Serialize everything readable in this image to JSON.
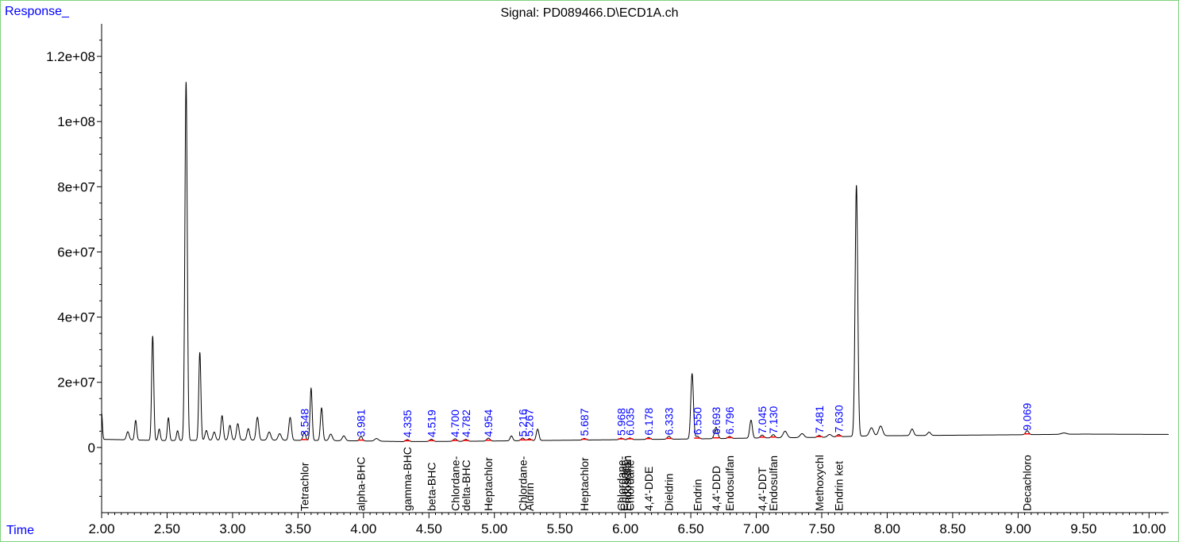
{
  "chart_data": {
    "type": "line",
    "title": "Signal: PD089466.D\\ECD1A.ch",
    "ylabel": "Response_",
    "xlabel": "Time",
    "xlim": [
      2.0,
      10.15
    ],
    "ylim": [
      -20000000,
      130000000
    ],
    "x_ticks": [
      "2.00",
      "2.50",
      "3.00",
      "3.50",
      "4.00",
      "4.50",
      "5.00",
      "5.50",
      "6.00",
      "6.50",
      "7.00",
      "7.50",
      "8.00",
      "8.50",
      "9.00",
      "9.50",
      "10.00"
    ],
    "x_tick_values": [
      2.0,
      2.5,
      3.0,
      3.5,
      4.0,
      4.5,
      5.0,
      5.5,
      6.0,
      6.5,
      7.0,
      7.5,
      8.0,
      8.5,
      9.0,
      9.5,
      10.0
    ],
    "y_ticks": [
      "0",
      "2e+07",
      "4e+07",
      "6e+07",
      "8e+07",
      "1e+08",
      "1.2e+08"
    ],
    "y_tick_values": [
      0,
      20000000,
      40000000,
      60000000,
      80000000,
      100000000,
      120000000
    ],
    "baseline": [
      [
        2.0,
        2500000
      ],
      [
        2.5,
        2100000
      ],
      [
        3.0,
        2300000
      ],
      [
        3.5,
        2200000
      ],
      [
        4.0,
        2000000
      ],
      [
        4.3,
        1800000
      ],
      [
        4.8,
        1900000
      ],
      [
        5.5,
        2200000
      ],
      [
        6.0,
        2400000
      ],
      [
        6.5,
        2600000
      ],
      [
        7.0,
        2900000
      ],
      [
        7.5,
        3100000
      ],
      [
        7.8,
        3500000
      ],
      [
        8.0,
        3600000
      ],
      [
        9.0,
        3900000
      ],
      [
        9.5,
        4100000
      ],
      [
        10.15,
        4000000
      ]
    ],
    "peaks": [
      [
        2.0,
        8000000,
        0.006
      ],
      [
        2.2,
        2500000,
        0.01
      ],
      [
        2.26,
        6000000,
        0.008
      ],
      [
        2.39,
        32000000,
        0.008
      ],
      [
        2.44,
        3500000,
        0.008
      ],
      [
        2.51,
        7000000,
        0.008
      ],
      [
        2.58,
        3000000,
        0.008
      ],
      [
        2.645,
        110000000,
        0.009
      ],
      [
        2.75,
        27000000,
        0.008
      ],
      [
        2.8,
        3000000,
        0.01
      ],
      [
        2.86,
        2500000,
        0.01
      ],
      [
        2.92,
        7500000,
        0.009
      ],
      [
        2.98,
        4500000,
        0.01
      ],
      [
        3.04,
        5000000,
        0.01
      ],
      [
        3.12,
        3500000,
        0.01
      ],
      [
        3.19,
        7000000,
        0.01
      ],
      [
        3.28,
        2500000,
        0.012
      ],
      [
        3.36,
        2000000,
        0.012
      ],
      [
        3.44,
        7000000,
        0.01
      ],
      [
        3.548,
        2500000,
        0.01
      ],
      [
        3.6,
        16000000,
        0.008
      ],
      [
        3.68,
        10000000,
        0.009
      ],
      [
        3.75,
        2000000,
        0.012
      ],
      [
        3.85,
        1500000,
        0.012
      ],
      [
        3.981,
        1500000,
        0.01
      ],
      [
        4.1,
        800000,
        0.015
      ],
      [
        4.335,
        600000,
        0.012
      ],
      [
        4.519,
        700000,
        0.012
      ],
      [
        4.7,
        800000,
        0.012
      ],
      [
        4.782,
        600000,
        0.012
      ],
      [
        4.954,
        900000,
        0.012
      ],
      [
        5.13,
        1500000,
        0.01
      ],
      [
        5.216,
        800000,
        0.012
      ],
      [
        5.267,
        600000,
        0.012
      ],
      [
        5.33,
        3500000,
        0.01
      ],
      [
        5.687,
        500000,
        0.012
      ],
      [
        5.968,
        500000,
        0.012
      ],
      [
        6.035,
        500000,
        0.012
      ],
      [
        6.178,
        600000,
        0.012
      ],
      [
        6.333,
        900000,
        0.012
      ],
      [
        6.51,
        20000000,
        0.01
      ],
      [
        6.55,
        800000,
        0.012
      ],
      [
        6.693,
        3500000,
        0.012
      ],
      [
        6.796,
        600000,
        0.012
      ],
      [
        6.96,
        5500000,
        0.01
      ],
      [
        7.045,
        900000,
        0.012
      ],
      [
        7.13,
        1000000,
        0.012
      ],
      [
        7.22,
        2000000,
        0.015
      ],
      [
        7.35,
        1200000,
        0.015
      ],
      [
        7.481,
        600000,
        0.012
      ],
      [
        7.56,
        800000,
        0.015
      ],
      [
        7.63,
        700000,
        0.012
      ],
      [
        7.765,
        77000000,
        0.01
      ],
      [
        7.88,
        2500000,
        0.015
      ],
      [
        7.95,
        3000000,
        0.015
      ],
      [
        8.19,
        2000000,
        0.012
      ],
      [
        8.32,
        1000000,
        0.012
      ],
      [
        9.069,
        1200000,
        0.012
      ],
      [
        9.35,
        400000,
        0.02
      ]
    ],
    "rt_labels": [
      "3.548",
      "3.981",
      "4.335",
      "4.519",
      "4.700",
      "4.782",
      "4.954",
      "5.216",
      "5.267",
      "5.687",
      "5.968",
      "6.035",
      "6.178",
      "6.333",
      "6.550",
      "6.693",
      "6.796",
      "7.045",
      "7.130",
      "7.481",
      "7.630",
      "9.069"
    ],
    "compounds": [
      {
        "name": "Tetrachlor",
        "x": 3.548
      },
      {
        "name": "alpha-BHC",
        "x": 3.981
      },
      {
        "name": "gamma-BHC",
        "x": 4.335
      },
      {
        "name": "beta-BHC",
        "x": 4.519
      },
      {
        "name": "Chlordane-",
        "x": 4.7
      },
      {
        "name": "delta-BHC",
        "x": 4.782
      },
      {
        "name": "Heptachlor",
        "x": 4.954
      },
      {
        "name": "Chlordane-",
        "x": 5.216
      },
      {
        "name": "Aldrin",
        "x": 5.267
      },
      {
        "name": "Heptachlor",
        "x": 5.687
      },
      {
        "name": "Chlordane-",
        "x": 5.968
      },
      {
        "name": "Chlordane-",
        "x": 5.99
      },
      {
        "name": "Endosulfan",
        "x": 6.015
      },
      {
        "name": "Chlordane",
        "x": 6.035
      },
      {
        "name": "4,4'-DDE",
        "x": 6.178
      },
      {
        "name": "Dieldrin",
        "x": 6.333
      },
      {
        "name": "Endrin",
        "x": 6.55
      },
      {
        "name": "4,4'-DDD",
        "x": 6.693
      },
      {
        "name": "Endosulfan",
        "x": 6.796
      },
      {
        "name": "4,4'-DDT",
        "x": 7.045
      },
      {
        "name": "Endosulfan",
        "x": 7.13
      },
      {
        "name": "Methoxychl",
        "x": 7.481
      },
      {
        "name": "Endrin ket",
        "x": 7.63
      },
      {
        "name": "Decachloro",
        "x": 9.069
      }
    ]
  }
}
